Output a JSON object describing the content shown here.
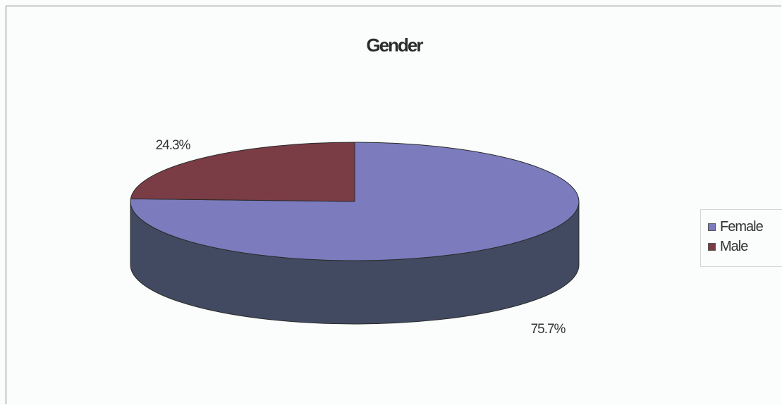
{
  "chart_data": {
    "type": "pie",
    "title": "Gender",
    "three_d": true,
    "categories": [
      "Female",
      "Male"
    ],
    "values": [
      75.7,
      24.3
    ],
    "data_labels": [
      "75.7%",
      "24.3%"
    ],
    "colors": [
      "#7b7bbd",
      "#7a3c45"
    ],
    "side_colors": [
      "#414a60",
      "#4a2a32"
    ],
    "legend": {
      "position": "right",
      "items": [
        {
          "label": "Female",
          "color": "#7b7bbd"
        },
        {
          "label": "Male",
          "color": "#7a3c45"
        }
      ]
    }
  }
}
